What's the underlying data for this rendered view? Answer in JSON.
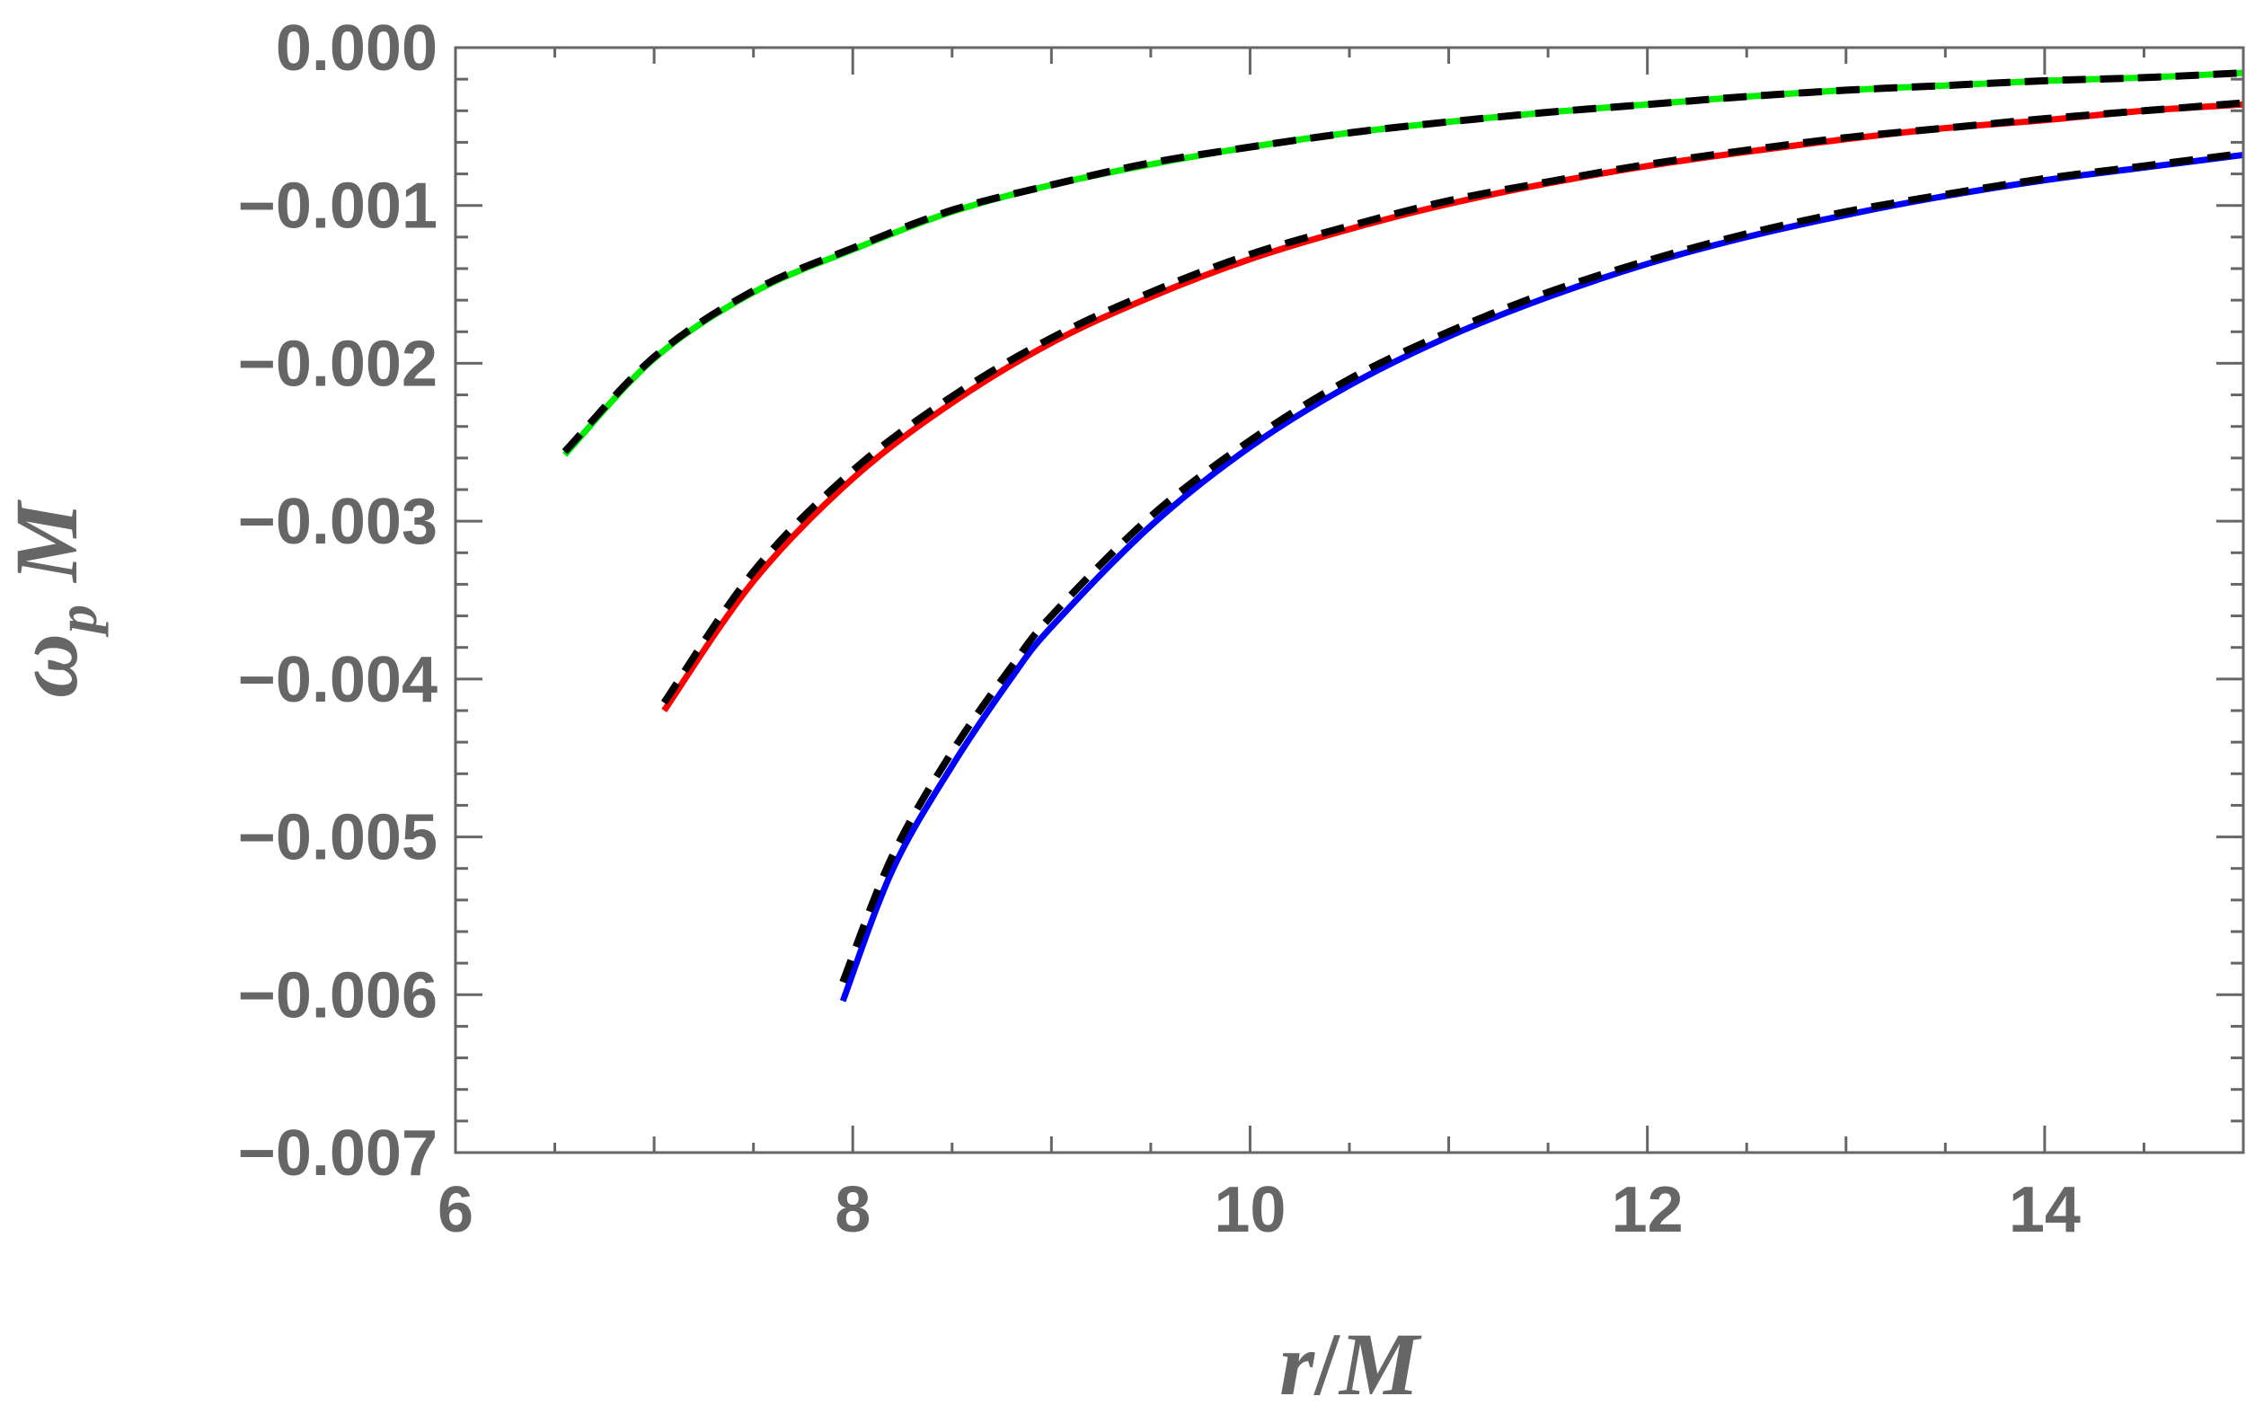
{
  "chart_data": {
    "type": "line",
    "xlabel": "r/M",
    "ylabel": "ω_p M",
    "xlabel_parts": [
      {
        "text": "r",
        "italic": true
      },
      {
        "text": "/",
        "italic": false
      },
      {
        "text": "M",
        "italic": true
      }
    ],
    "ylabel_parts": {
      "main": "ω",
      "sub": "p",
      "tail": " M"
    },
    "xlim": [
      6,
      15
    ],
    "ylim": [
      -0.007,
      0.0
    ],
    "x_ticks": [
      6,
      8,
      10,
      12,
      14
    ],
    "x_tick_labels": [
      "6",
      "8",
      "10",
      "12",
      "14"
    ],
    "y_ticks": [
      0.0,
      -0.001,
      -0.002,
      -0.003,
      -0.004,
      -0.005,
      -0.006,
      -0.007
    ],
    "y_tick_labels": [
      "0.000",
      "−0.001",
      "−0.002",
      "−0.003",
      "−0.004",
      "−0.005",
      "−0.006",
      "−0.007"
    ],
    "grid": false,
    "frame": true,
    "series": [
      {
        "color": "#00ee00",
        "style": "solid",
        "x": [
          6.55,
          7.0,
          7.5,
          8.0,
          8.5,
          9.0,
          9.5,
          10.0,
          10.5,
          11.0,
          11.5,
          12.0,
          12.5,
          13.0,
          13.5,
          14.0,
          14.5,
          15.0
        ],
        "y": [
          -0.00258,
          -0.00197,
          -0.00155,
          -0.00128,
          -0.00104,
          -0.00087,
          -0.00074,
          -0.00063,
          -0.00054,
          -0.00047,
          -0.00041,
          -0.00036,
          -0.00031,
          -0.00027,
          -0.00024,
          -0.00021,
          -0.00019,
          -0.00016
        ]
      },
      {
        "color": "#000000",
        "style": "dashed",
        "x": [
          6.55,
          7.0,
          7.5,
          8.0,
          8.5,
          9.0,
          9.5,
          10.0,
          10.5,
          11.0,
          11.5,
          12.0,
          12.5,
          13.0,
          13.5,
          14.0,
          14.5,
          15.0
        ],
        "y": [
          -0.00256,
          -0.00196,
          -0.00154,
          -0.00127,
          -0.00103,
          -0.00087,
          -0.00073,
          -0.00063,
          -0.00054,
          -0.00047,
          -0.00041,
          -0.00036,
          -0.00031,
          -0.00027,
          -0.00024,
          -0.00021,
          -0.00019,
          -0.00016
        ]
      },
      {
        "color": "#ff0000",
        "style": "solid",
        "x": [
          7.05,
          7.5,
          8.0,
          8.5,
          9.0,
          9.5,
          10.0,
          10.5,
          11.0,
          11.5,
          12.0,
          12.5,
          13.0,
          13.5,
          14.0,
          14.5,
          15.0
        ],
        "y": [
          -0.0042,
          -0.00338,
          -0.00273,
          -0.00225,
          -0.00187,
          -0.00158,
          -0.00134,
          -0.00115,
          -0.00099,
          -0.00086,
          -0.00075,
          -0.00066,
          -0.00058,
          -0.00051,
          -0.00046,
          -0.0004,
          -0.00036
        ]
      },
      {
        "color": "#000000",
        "style": "dashed",
        "x": [
          7.05,
          7.5,
          8.0,
          8.5,
          9.0,
          9.5,
          10.0,
          10.5,
          11.0,
          11.5,
          12.0,
          12.5,
          13.0,
          13.5,
          14.0,
          14.5,
          15.0
        ],
        "y": [
          -0.00415,
          -0.00332,
          -0.00268,
          -0.00221,
          -0.00184,
          -0.00155,
          -0.00131,
          -0.00113,
          -0.00097,
          -0.00085,
          -0.00074,
          -0.00065,
          -0.00057,
          -0.00051,
          -0.00045,
          -0.0004,
          -0.00035
        ]
      },
      {
        "color": "#0000ff",
        "style": "solid",
        "x": [
          7.95,
          8.2,
          8.5,
          8.8,
          9.0,
          9.5,
          10.0,
          10.5,
          11.0,
          11.5,
          12.0,
          12.5,
          13.0,
          13.5,
          14.0,
          14.5,
          15.0
        ],
        "y": [
          -0.00604,
          -0.00521,
          -0.00455,
          -0.00399,
          -0.00367,
          -0.00303,
          -0.00253,
          -0.00214,
          -0.00183,
          -0.00158,
          -0.00137,
          -0.0012,
          -0.00106,
          -0.00094,
          -0.00084,
          -0.00076,
          -0.00068
        ]
      },
      {
        "color": "#000000",
        "style": "dashed",
        "x": [
          7.95,
          8.2,
          8.5,
          8.8,
          9.0,
          9.5,
          10.0,
          10.5,
          11.0,
          11.5,
          12.0,
          12.5,
          13.0,
          13.5,
          14.0,
          14.5,
          15.0
        ],
        "y": [
          -0.00592,
          -0.00512,
          -0.00446,
          -0.00392,
          -0.0036,
          -0.00297,
          -0.00249,
          -0.0021,
          -0.0018,
          -0.00155,
          -0.00135,
          -0.00118,
          -0.00104,
          -0.00093,
          -0.00083,
          -0.00075,
          -0.00067
        ]
      }
    ]
  }
}
